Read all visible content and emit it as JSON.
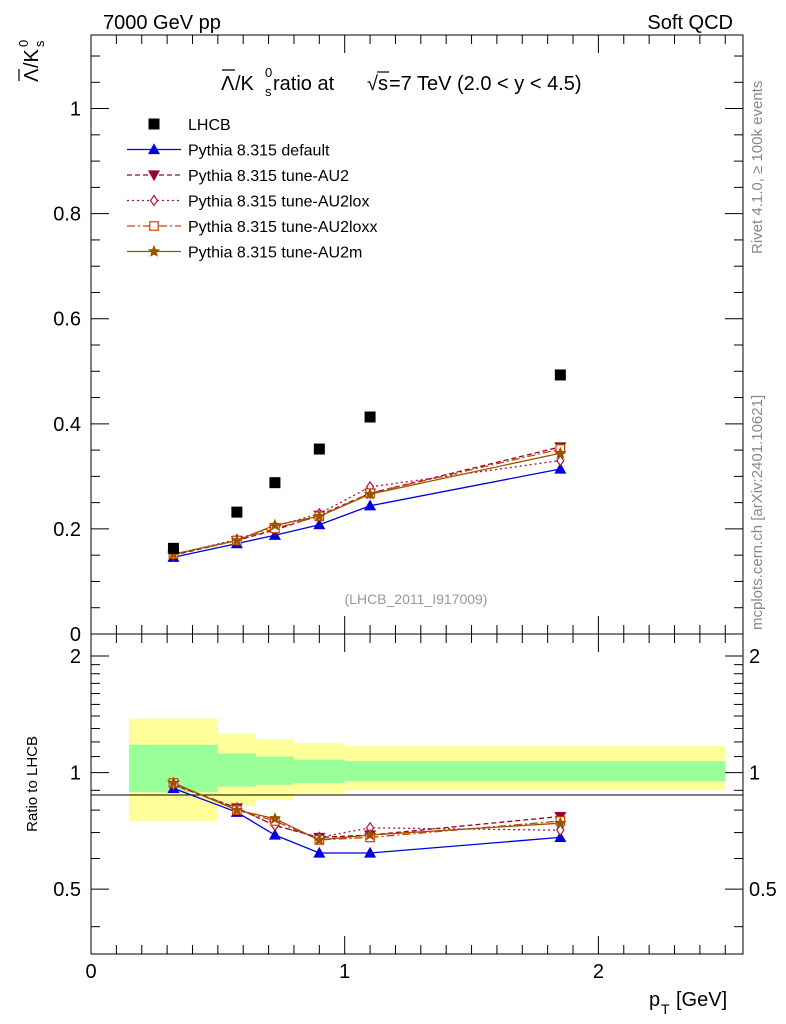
{
  "header": {
    "left": "7000 GeV pp",
    "right": "Soft QCD"
  },
  "side": {
    "rivet": "Rivet 4.1.0, ≥ 100k events",
    "mcplots": "mcplots.cern.ch [arXiv:2401.10621]"
  },
  "colors": {
    "data": "#000000",
    "default": "#0000dd",
    "au2": "#990033",
    "au2lox": "#aa1144",
    "au2loxx": "#cc4400",
    "au2m": "#995500",
    "band_inner": "#99ff99",
    "band_outer": "#ffff99"
  },
  "chart_data": [
    {
      "type": "scatter",
      "title_parts": {
        "prefix": "/K",
        "mid": " ratio at ",
        "sqrt": "s",
        "suffix": "=7 TeV (2.0 < y < 4.5)"
      },
      "ylabel": "Λ/K0s",
      "analysis_label": "(LHCB_2011_I917009)",
      "xlim": [
        0,
        2.57
      ],
      "ylim": [
        0,
        1.14
      ],
      "yticks": [
        0,
        0.2,
        0.4,
        0.6,
        0.8,
        1
      ],
      "ytick_labels": [
        "0",
        "0.2",
        "0.4",
        "0.6",
        "0.8",
        "1"
      ],
      "x": [
        0.325,
        0.575,
        0.725,
        0.9,
        1.1,
        1.85
      ],
      "series": [
        {
          "name": "LHCB",
          "key": "data",
          "values": [
            0.163,
            0.232,
            0.288,
            0.352,
            0.413,
            0.493
          ]
        },
        {
          "name": "Pythia 8.315 default",
          "key": "default",
          "values": [
            0.146,
            0.172,
            0.188,
            0.208,
            0.244,
            0.314
          ]
        },
        {
          "name": "Pythia 8.315 tune-AU2",
          "key": "au2",
          "values": [
            0.15,
            0.178,
            0.198,
            0.226,
            0.268,
            0.356
          ]
        },
        {
          "name": "Pythia 8.315 tune-AU2lox",
          "key": "au2lox",
          "values": [
            0.151,
            0.18,
            0.205,
            0.229,
            0.28,
            0.33
          ]
        },
        {
          "name": "Pythia 8.315 tune-AU2loxx",
          "key": "au2loxx",
          "values": [
            0.152,
            0.178,
            0.201,
            0.224,
            0.268,
            0.352
          ]
        },
        {
          "name": "Pythia 8.315 tune-AU2m",
          "key": "au2m",
          "values": [
            0.152,
            0.178,
            0.207,
            0.224,
            0.266,
            0.344
          ]
        }
      ]
    },
    {
      "type": "line",
      "ylabel": "Ratio to LHCB",
      "xlabel": "p_T [GeV]",
      "xlim": [
        0,
        2.57
      ],
      "ylim": [
        0.34,
        2.28
      ],
      "yticks": [
        0.5,
        1,
        2
      ],
      "ytick_labels": [
        "0.5",
        "1",
        "2"
      ],
      "xticks": [
        0,
        1,
        2
      ],
      "xtick_labels": [
        "0",
        "1",
        "2"
      ],
      "bins": [
        [
          0.15,
          0.5
        ],
        [
          0.5,
          0.65
        ],
        [
          0.65,
          0.8
        ],
        [
          0.8,
          1.0
        ],
        [
          1.0,
          1.2
        ],
        [
          1.2,
          2.5
        ]
      ],
      "band_inner": [
        [
          0.89,
          1.18
        ],
        [
          0.92,
          1.12
        ],
        [
          0.93,
          1.1
        ],
        [
          0.94,
          1.08
        ],
        [
          0.95,
          1.07
        ],
        [
          0.95,
          1.07
        ]
      ],
      "band_outer": [
        [
          0.75,
          1.38
        ],
        [
          0.82,
          1.26
        ],
        [
          0.85,
          1.22
        ],
        [
          0.88,
          1.19
        ],
        [
          0.9,
          1.17
        ],
        [
          0.9,
          1.17
        ]
      ],
      "x": [
        0.325,
        0.575,
        0.725,
        0.9,
        1.1,
        1.85
      ],
      "series": [
        {
          "name": "Pythia 8.315 default",
          "key": "default",
          "values": [
            0.91,
            0.79,
            0.69,
            0.62,
            0.62,
            0.68
          ]
        },
        {
          "name": "Pythia 8.315 tune-AU2",
          "key": "au2",
          "values": [
            0.93,
            0.81,
            0.73,
            0.68,
            0.69,
            0.77
          ]
        },
        {
          "name": "Pythia 8.315 tune-AU2lox",
          "key": "au2lox",
          "values": [
            0.93,
            0.81,
            0.73,
            0.68,
            0.72,
            0.71
          ]
        },
        {
          "name": "Pythia 8.315 tune-AU2loxx",
          "key": "au2loxx",
          "values": [
            0.94,
            0.8,
            0.75,
            0.67,
            0.68,
            0.75
          ]
        },
        {
          "name": "Pythia 8.315 tune-AU2m",
          "key": "au2m",
          "values": [
            0.94,
            0.8,
            0.76,
            0.67,
            0.69,
            0.74
          ]
        }
      ]
    }
  ]
}
